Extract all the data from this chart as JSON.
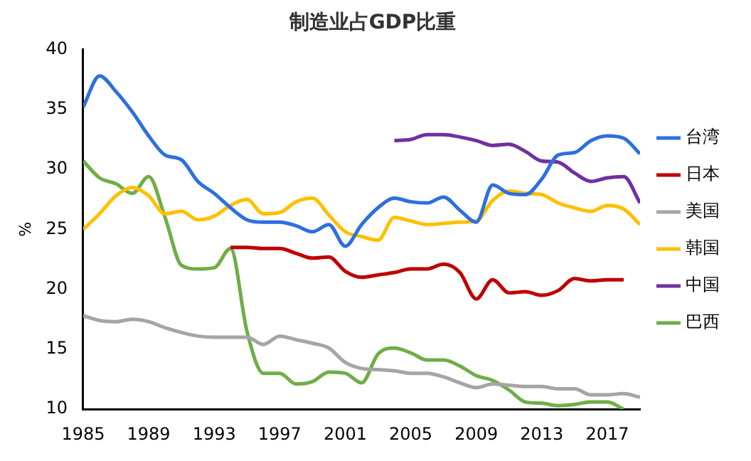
{
  "chart_data": {
    "type": "line",
    "title": "制造业占GDP比重",
    "ylabel": "%",
    "x": [
      1985,
      1986,
      1987,
      1988,
      1989,
      1990,
      1991,
      1992,
      1993,
      1994,
      1995,
      1996,
      1997,
      1998,
      1999,
      2000,
      2001,
      2002,
      2003,
      2004,
      2005,
      2006,
      2007,
      2008,
      2009,
      2010,
      2011,
      2012,
      2013,
      2014,
      2015,
      2016,
      2017,
      2018,
      2019
    ],
    "xlim": [
      1985,
      2019
    ],
    "xticks": [
      1985,
      1989,
      1993,
      1997,
      2001,
      2005,
      2009,
      2013,
      2017
    ],
    "ylim": [
      10,
      40
    ],
    "yticks": [
      10,
      15,
      20,
      25,
      30,
      35,
      40
    ],
    "grid": false,
    "legend": "right",
    "marker": "none",
    "series": [
      {
        "name": "台湾",
        "color": "#2e6fe0",
        "values": [
          35.2,
          37.8,
          36.5,
          34.8,
          32.8,
          31.2,
          30.8,
          29.0,
          28.0,
          26.8,
          25.8,
          25.6,
          25.6,
          25.3,
          24.8,
          25.4,
          23.6,
          25.4,
          26.8,
          27.6,
          27.3,
          27.2,
          27.7,
          26.6,
          25.6,
          28.7,
          28.0,
          27.9,
          29.2,
          31.2,
          31.4,
          32.4,
          32.8,
          32.6,
          31.3
        ]
      },
      {
        "name": "日本",
        "color": "#c00000",
        "values": [
          null,
          null,
          null,
          null,
          null,
          null,
          null,
          null,
          null,
          23.5,
          23.5,
          23.4,
          23.4,
          23.0,
          22.6,
          22.7,
          21.5,
          21.0,
          21.2,
          21.4,
          21.7,
          21.7,
          22.1,
          21.4,
          19.2,
          20.8,
          19.7,
          19.8,
          19.5,
          19.9,
          20.9,
          20.7,
          20.8,
          20.8,
          null
        ]
      },
      {
        "name": "美国",
        "color": "#a5a5a5",
        "values": [
          17.8,
          17.4,
          17.3,
          17.5,
          17.3,
          16.8,
          16.4,
          16.1,
          16.0,
          16.0,
          16.0,
          15.4,
          16.1,
          15.8,
          15.5,
          15.1,
          13.9,
          13.4,
          13.3,
          13.2,
          13.0,
          13.0,
          12.7,
          12.2,
          11.8,
          12.1,
          12.0,
          11.9,
          11.9,
          11.7,
          11.7,
          11.2,
          11.2,
          11.3,
          11.0
        ]
      },
      {
        "name": "韩国",
        "color": "#ffc000",
        "values": [
          25.0,
          26.3,
          27.8,
          28.5,
          27.8,
          26.3,
          26.5,
          25.8,
          26.1,
          27.0,
          27.5,
          26.3,
          26.4,
          27.3,
          27.6,
          26.2,
          24.8,
          24.4,
          24.1,
          26.0,
          25.7,
          25.4,
          25.5,
          25.6,
          25.7,
          27.4,
          28.2,
          28.0,
          27.9,
          27.2,
          26.8,
          26.5,
          27.0,
          26.7,
          25.4
        ]
      },
      {
        "name": "中国",
        "color": "#7030a0",
        "values": [
          null,
          null,
          null,
          null,
          null,
          null,
          null,
          null,
          null,
          null,
          null,
          null,
          null,
          null,
          null,
          null,
          null,
          null,
          null,
          32.4,
          32.5,
          32.9,
          32.9,
          32.7,
          32.4,
          32.0,
          32.1,
          31.5,
          30.7,
          30.6,
          29.7,
          29.0,
          29.3,
          29.4,
          27.2
        ]
      },
      {
        "name": "巴西",
        "color": "#70ad47",
        "values": [
          30.7,
          29.3,
          28.8,
          28.0,
          29.4,
          26.0,
          22.0,
          21.7,
          21.8,
          23.4,
          16.5,
          13.0,
          13.0,
          12.1,
          12.3,
          13.1,
          13.0,
          12.2,
          14.6,
          15.1,
          14.7,
          14.1,
          14.1,
          13.6,
          12.8,
          12.4,
          11.6,
          10.6,
          10.5,
          10.3,
          10.4,
          10.6,
          10.6,
          10.0,
          null
        ]
      }
    ]
  }
}
